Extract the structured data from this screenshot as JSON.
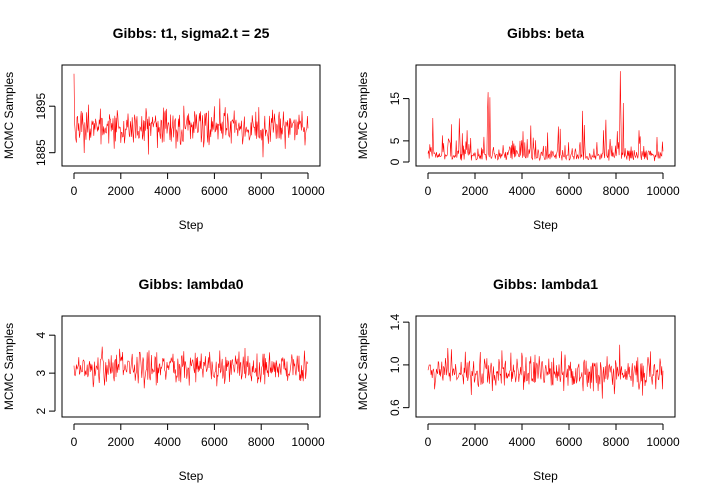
{
  "chart_data": [
    {
      "type": "line",
      "title": "Gibbs: t1, sigma2.t = 25",
      "xlabel": "Step",
      "ylabel": "MCMC Samples",
      "xlim": [
        0,
        10000
      ],
      "ylim": [
        1883,
        1903
      ],
      "xticks": [
        0,
        2000,
        4000,
        6000,
        8000,
        10000
      ],
      "yticks": [
        1885,
        1895
      ],
      "series": [
        {
          "color": "#ff0000",
          "n_steps": 10000,
          "center": 1890.5,
          "spread": 2.6,
          "min": 1884,
          "max": 1902,
          "start": 1902
        }
      ]
    },
    {
      "type": "line",
      "title": "Gibbs: beta",
      "xlabel": "Step",
      "ylabel": "MCMC Samples",
      "xlim": [
        0,
        10000
      ],
      "ylim": [
        0,
        22
      ],
      "xticks": [
        0,
        2000,
        4000,
        6000,
        8000,
        10000
      ],
      "yticks": [
        0,
        5,
        15
      ],
      "series": [
        {
          "color": "#ff0000",
          "n_steps": 10000,
          "center": 2.0,
          "spread": 1.6,
          "min": 0.2,
          "max": 21.5,
          "start": 2
        }
      ]
    },
    {
      "type": "line",
      "title": "Gibbs: lambda0",
      "xlabel": "Step",
      "ylabel": "MCMC Samples",
      "xlim": [
        0,
        10000
      ],
      "ylim": [
        1.95,
        4.4
      ],
      "xticks": [
        0,
        2000,
        4000,
        6000,
        8000,
        10000
      ],
      "yticks": [
        2.0,
        3.0,
        4.0
      ],
      "series": [
        {
          "color": "#ff0000",
          "n_steps": 10000,
          "center": 3.15,
          "spread": 0.3,
          "min": 2.05,
          "max": 4.35,
          "start": 3.2
        }
      ]
    },
    {
      "type": "line",
      "title": "Gibbs: lambda1",
      "xlabel": "Step",
      "ylabel": "MCMC Samples",
      "xlim": [
        0,
        10000
      ],
      "ylim": [
        0.55,
        1.42
      ],
      "xticks": [
        0,
        2000,
        4000,
        6000,
        8000,
        10000
      ],
      "yticks": [
        0.6,
        1.0,
        1.4
      ],
      "series": [
        {
          "color": "#ff0000",
          "n_steps": 10000,
          "center": 0.92,
          "spread": 0.11,
          "min": 0.58,
          "max": 1.37,
          "start": 0.95
        }
      ]
    }
  ]
}
